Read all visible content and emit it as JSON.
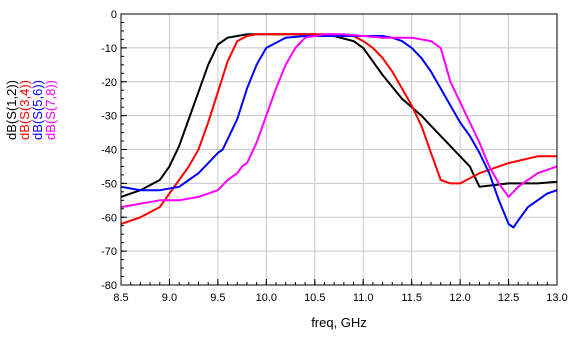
{
  "chart_data": {
    "type": "line",
    "title": "",
    "xlabel": "freq, GHz",
    "ylabel": "",
    "xlim": [
      8.5,
      13.0
    ],
    "ylim": [
      -80,
      0
    ],
    "x_ticks": [
      "8.5",
      "9.0",
      "9.5",
      "10.0",
      "10.5",
      "11.0",
      "11.5",
      "12.0",
      "12.5",
      "13.0"
    ],
    "y_ticks": [
      "0",
      "-10",
      "-20",
      "-30",
      "-40",
      "-50",
      "-60",
      "-70",
      "-80"
    ],
    "grid": true,
    "legend_placement": "left, rotated",
    "series": [
      {
        "name": "dB(S(1,2))",
        "color": "#000000",
        "x": [
          8.5,
          8.7,
          8.9,
          9.0,
          9.1,
          9.2,
          9.3,
          9.4,
          9.5,
          9.6,
          9.7,
          9.8,
          10.0,
          10.2,
          10.5,
          10.7,
          10.9,
          11.0,
          11.1,
          11.2,
          11.4,
          11.6,
          11.7,
          11.8,
          11.9,
          12.0,
          12.1,
          12.2,
          12.5,
          12.8,
          13.0
        ],
        "y": [
          -54,
          -52,
          -49,
          -45,
          -39,
          -31,
          -23,
          -15,
          -9,
          -7,
          -6.5,
          -6,
          -6,
          -6,
          -6,
          -6.5,
          -8,
          -10,
          -14,
          -18,
          -25,
          -30,
          -33,
          -36,
          -39,
          -42,
          -45,
          -51,
          -50,
          -50,
          -49.5
        ]
      },
      {
        "name": "dB(S(3,4))",
        "color": "#ff0000",
        "x": [
          8.5,
          8.7,
          8.9,
          9.0,
          9.1,
          9.2,
          9.3,
          9.4,
          9.5,
          9.6,
          9.7,
          9.8,
          9.9,
          10.0,
          10.2,
          10.5,
          10.7,
          10.9,
          11.0,
          11.1,
          11.2,
          11.3,
          11.4,
          11.5,
          11.6,
          11.7,
          11.8,
          11.9,
          12.0,
          12.2,
          12.5,
          12.8,
          13.0
        ],
        "y": [
          -62,
          -60,
          -57,
          -53,
          -49,
          -45,
          -40,
          -32,
          -23,
          -14,
          -8,
          -6.5,
          -6,
          -6,
          -6,
          -6,
          -6,
          -6.5,
          -8,
          -10,
          -13,
          -17,
          -22,
          -27,
          -33,
          -41,
          -49,
          -50,
          -50,
          -47,
          -44,
          -42,
          -42
        ]
      },
      {
        "name": "dB(S(5,6))",
        "color": "#0000ff",
        "x": [
          8.5,
          8.7,
          8.9,
          9.1,
          9.2,
          9.3,
          9.4,
          9.5,
          9.55,
          9.6,
          9.7,
          9.8,
          9.9,
          10.0,
          10.2,
          10.4,
          10.6,
          10.8,
          11.0,
          11.2,
          11.3,
          11.4,
          11.5,
          11.6,
          11.7,
          11.8,
          11.9,
          12.0,
          12.1,
          12.2,
          12.3,
          12.4,
          12.5,
          12.55,
          12.6,
          12.7,
          12.8,
          12.9,
          13.0
        ],
        "y": [
          -51,
          -52,
          -52,
          -51,
          -49,
          -47,
          -44,
          -41,
          -40,
          -37,
          -31,
          -22,
          -15,
          -10,
          -7,
          -6.5,
          -6.5,
          -6.5,
          -6.5,
          -6.5,
          -7,
          -8,
          -10,
          -13,
          -17,
          -22,
          -27,
          -32,
          -36,
          -41,
          -47,
          -55,
          -62,
          -63,
          -61,
          -57,
          -55,
          -53,
          -52
        ]
      },
      {
        "name": "dB(S(7,8))",
        "color": "#ff00ff",
        "x": [
          8.5,
          8.7,
          8.9,
          9.1,
          9.3,
          9.5,
          9.6,
          9.7,
          9.75,
          9.8,
          9.9,
          10.0,
          10.1,
          10.2,
          10.3,
          10.4,
          10.6,
          10.8,
          11.0,
          11.2,
          11.5,
          11.6,
          11.7,
          11.8,
          11.85,
          11.9,
          12.0,
          12.1,
          12.2,
          12.3,
          12.4,
          12.5,
          12.6,
          12.7,
          12.8,
          13.0
        ],
        "y": [
          -57,
          -56,
          -55,
          -55,
          -54,
          -52,
          -49,
          -47,
          -45,
          -44,
          -38,
          -30,
          -22,
          -15,
          -10,
          -7,
          -6,
          -6,
          -6.5,
          -7,
          -7,
          -7.5,
          -8,
          -10,
          -15,
          -20,
          -26,
          -32,
          -38,
          -45,
          -50,
          -54,
          -51,
          -49,
          -47,
          -45
        ]
      }
    ]
  }
}
